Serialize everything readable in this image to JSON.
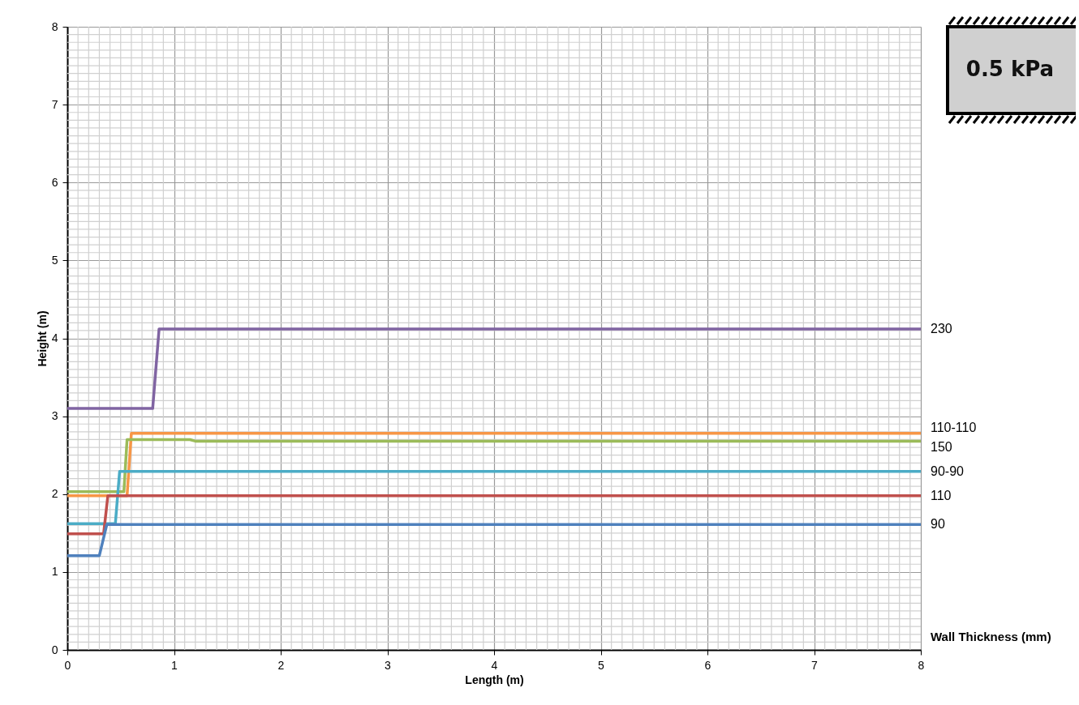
{
  "chart_data": {
    "type": "line",
    "xlabel": "Length (m)",
    "ylabel": "Height (m)",
    "xlim": [
      0,
      8
    ],
    "ylim": [
      0,
      8
    ],
    "xticks": [
      0,
      1,
      2,
      3,
      4,
      5,
      6,
      7,
      8
    ],
    "yticks": [
      0,
      1,
      2,
      3,
      4,
      5,
      6,
      7,
      8
    ],
    "grid": true,
    "legend": false,
    "line_style": "solid",
    "marker": "none",
    "annotations": [
      "0.5 kPa",
      "Wall Thickness (mm)"
    ],
    "series": [
      {
        "name": "230",
        "color": "#8064a2",
        "x": [
          0,
          0.8,
          0.86,
          8
        ],
        "values": [
          3.1,
          3.1,
          4.12,
          4.12
        ]
      },
      {
        "name": "110-110",
        "color": "#f79646",
        "x": [
          0,
          0.56,
          0.6,
          8
        ],
        "values": [
          1.98,
          1.98,
          2.78,
          2.78
        ]
      },
      {
        "name": "150",
        "color": "#9bbb59",
        "x": [
          0,
          0.53,
          0.56,
          1.15,
          1.2,
          8
        ],
        "values": [
          2.03,
          2.03,
          2.7,
          2.7,
          2.68,
          2.68
        ]
      },
      {
        "name": "90-90",
        "color": "#4bacc6",
        "x": [
          0,
          0.45,
          0.49,
          8
        ],
        "values": [
          1.62,
          1.62,
          2.29,
          2.29
        ]
      },
      {
        "name": "110",
        "color": "#c0504d",
        "x": [
          0,
          0.34,
          0.38,
          8
        ],
        "values": [
          1.49,
          1.49,
          1.98,
          1.98
        ]
      },
      {
        "name": "90",
        "color": "#4f81bd",
        "x": [
          0,
          0.3,
          0.37,
          8
        ],
        "values": [
          1.21,
          1.21,
          1.61,
          1.61
        ]
      }
    ]
  }
}
